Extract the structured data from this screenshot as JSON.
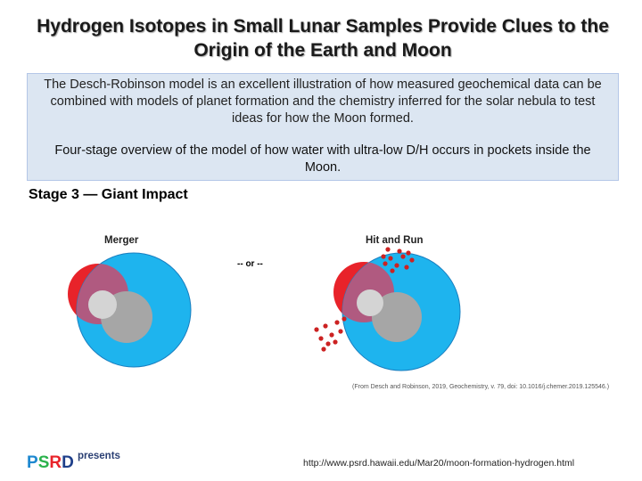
{
  "slide": {
    "title": "Hydrogen Isotopes in Small Lunar Samples Provide Clues to the Origin of the Earth and Moon",
    "intro": "The Desch-Robinson model is an excellent illustration of how measured geochemical data can be combined with models of planet formation and the chemistry inferred for the solar nebula to test ideas for how the Moon formed.",
    "overview": "Four-stage overview of the model of how water with ultra-low D/H occurs in pockets inside the Moon.",
    "stage_heading": "Stage 3 — Giant Impact"
  },
  "figure": {
    "merger_label": "Merger",
    "separator": "-- or --",
    "hit_run_label": "Hit and Run",
    "citation": "(From Desch and Robinson, 2019, Geochemistry, v. 79, doi: 10.1016/j.chemer.2019.125546.)",
    "colors": {
      "earth": "#1eb4ee",
      "earth_outline": "#1a7fc0",
      "impactor": "#e8232a",
      "overlap": "#b05a80",
      "core_gray": "#a6a6a6",
      "core_light": "#cfcfcf",
      "label_red": "#cc2222"
    }
  },
  "footer": {
    "logo_letters": [
      "P",
      "S",
      "R",
      "D"
    ],
    "logo_colors": [
      "#1e88d0",
      "#2bb24c",
      "#e8232a",
      "#1e3f8a"
    ],
    "logo_suffix": "presents",
    "url": "http://www.psrd.hawaii.edu/Mar20/moon-formation-hydrogen.html"
  }
}
